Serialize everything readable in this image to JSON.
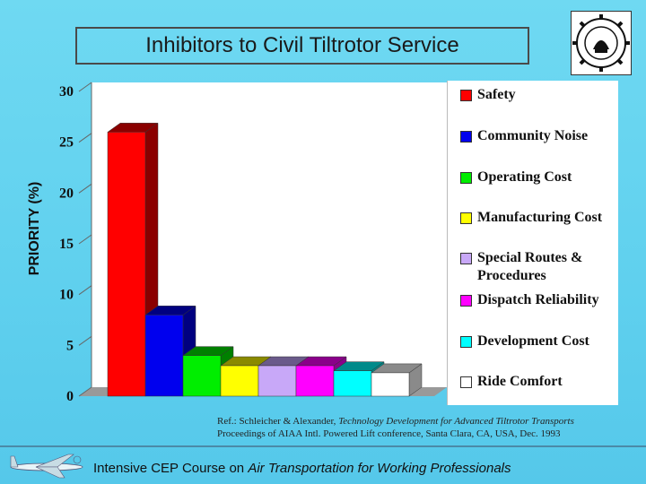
{
  "title": "Inhibitors to Civil Tiltrotor Service",
  "chart_data": {
    "type": "bar",
    "ylabel": "PRIORITY (%)",
    "ylim": [
      0,
      30
    ],
    "yticks": [
      0,
      5,
      10,
      15,
      20,
      25,
      30
    ],
    "grid": false,
    "legend_position": "right",
    "categories": [
      "Safety",
      "Community Noise",
      "Operating Cost",
      "Manufacturing Cost",
      "Special Routes & Procedures",
      "Dispatch Reliability",
      "Development Cost",
      "Ride Comfort"
    ],
    "values": [
      26,
      8,
      4,
      3,
      3,
      3,
      2.5,
      2.3
    ],
    "colors": [
      "#ff0000",
      "#0000ee",
      "#00ee00",
      "#ffff00",
      "#c8a8f8",
      "#ff00ff",
      "#00ffff",
      "#ffffff"
    ],
    "side_colors": [
      "#8a0000",
      "#000080",
      "#008000",
      "#8a8a00",
      "#6a5a8a",
      "#8a008a",
      "#008a8a",
      "#8a8a8a"
    ]
  },
  "legend": [
    {
      "label": "Safety",
      "color": "#ff0000"
    },
    {
      "label": "Community Noise",
      "color": "#0000ee"
    },
    {
      "label": "Operating Cost",
      "color": "#00ee00"
    },
    {
      "label": "Manufacturing Cost",
      "color": "#ffff00"
    },
    {
      "label": "Special Routes & Procedures",
      "color": "#c8a8f8"
    },
    {
      "label": "Dispatch Reliability",
      "color": "#ff00ff"
    },
    {
      "label": "Development Cost",
      "color": "#00ffff"
    },
    {
      "label": "Ride Comfort",
      "color": "#ffffff"
    }
  ],
  "reference": {
    "prefix": "Ref.: Schleicher & Alexander, ",
    "title_italic": "Technology Development for Advanced Tiltrotor Transports",
    "line2": "Proceedings of AIAA Intl. Powered Lift conference, Santa Clara, CA, USA, Dec. 1993"
  },
  "footer": {
    "prefix": "Intensive CEP Course on ",
    "italic": "Air Transportation for Working Professionals"
  }
}
